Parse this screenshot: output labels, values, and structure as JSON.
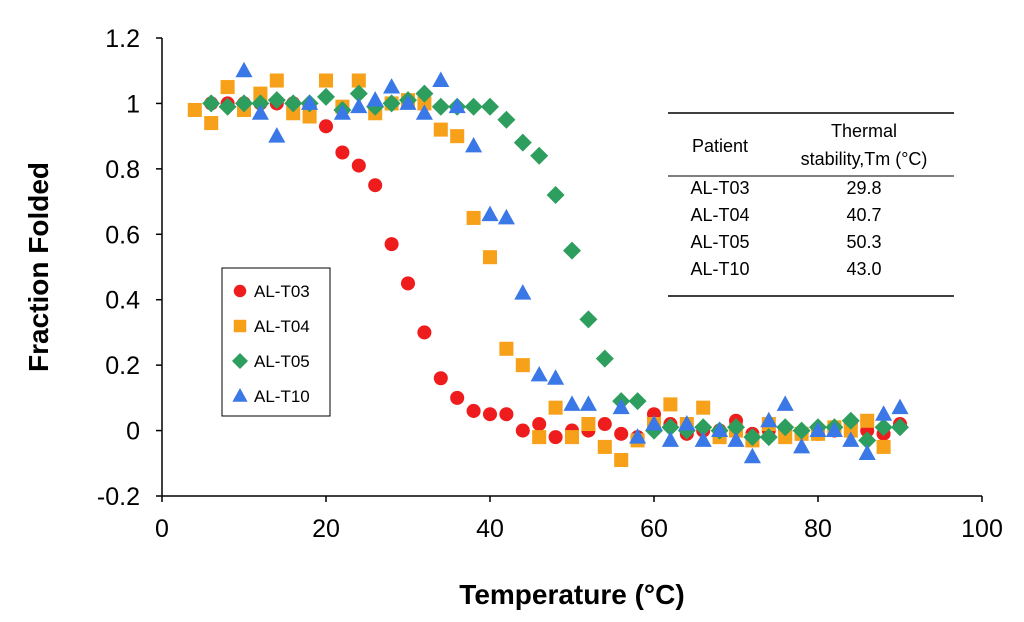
{
  "chart_data": {
    "type": "scatter",
    "title": "",
    "xlabel": "Temperature (°C)",
    "ylabel": "Fraction Folded",
    "xlim": [
      0,
      100
    ],
    "ylim": [
      -0.2,
      1.2
    ],
    "x_ticks": [
      "0",
      "20",
      "40",
      "60",
      "80",
      "100"
    ],
    "y_ticks": [
      "-0.2",
      "0",
      "0.2",
      "0.4",
      "0.6",
      "0.8",
      "1",
      "1.2"
    ],
    "grid": false,
    "legend_position": "center-left",
    "series": [
      {
        "name": "AL-T03",
        "marker": "circle",
        "color": "#ee1c1c",
        "points": [
          [
            6,
            1.0
          ],
          [
            8,
            1.0
          ],
          [
            10,
            1.0
          ],
          [
            12,
            1.0
          ],
          [
            14,
            1.0
          ],
          [
            16,
            1.0
          ],
          [
            18,
            0.99
          ],
          [
            20,
            0.93
          ],
          [
            22,
            0.85
          ],
          [
            24,
            0.81
          ],
          [
            26,
            0.75
          ],
          [
            28,
            0.57
          ],
          [
            30,
            0.45
          ],
          [
            32,
            0.3
          ],
          [
            34,
            0.16
          ],
          [
            36,
            0.1
          ],
          [
            38,
            0.06
          ],
          [
            40,
            0.05
          ],
          [
            42,
            0.05
          ],
          [
            44,
            0.0
          ],
          [
            46,
            0.02
          ],
          [
            48,
            -0.02
          ],
          [
            50,
            0.0
          ],
          [
            52,
            0.0
          ],
          [
            54,
            0.02
          ],
          [
            56,
            -0.01
          ],
          [
            58,
            -0.02
          ],
          [
            60,
            0.05
          ],
          [
            62,
            0.02
          ],
          [
            64,
            -0.01
          ],
          [
            66,
            0.0
          ],
          [
            68,
            0.0
          ],
          [
            70,
            0.03
          ],
          [
            72,
            -0.01
          ],
          [
            74,
            0.0
          ],
          [
            76,
            0.0
          ],
          [
            78,
            -0.01
          ],
          [
            80,
            -0.01
          ],
          [
            82,
            0.0
          ],
          [
            84,
            0.02
          ],
          [
            86,
            0.0
          ],
          [
            88,
            -0.01
          ],
          [
            90,
            0.02
          ]
        ]
      },
      {
        "name": "AL-T04",
        "marker": "square",
        "color": "#f7a11a",
        "points": [
          [
            4,
            0.98
          ],
          [
            6,
            0.94
          ],
          [
            8,
            1.05
          ],
          [
            10,
            0.98
          ],
          [
            12,
            1.03
          ],
          [
            14,
            1.07
          ],
          [
            16,
            0.97
          ],
          [
            18,
            0.96
          ],
          [
            20,
            1.07
          ],
          [
            22,
            0.99
          ],
          [
            24,
            1.07
          ],
          [
            26,
            0.97
          ],
          [
            28,
            1.0
          ],
          [
            30,
            1.01
          ],
          [
            32,
            1.0
          ],
          [
            34,
            0.92
          ],
          [
            36,
            0.9
          ],
          [
            38,
            0.65
          ],
          [
            40,
            0.53
          ],
          [
            42,
            0.25
          ],
          [
            44,
            0.2
          ],
          [
            46,
            -0.02
          ],
          [
            48,
            0.07
          ],
          [
            50,
            -0.02
          ],
          [
            52,
            0.02
          ],
          [
            54,
            -0.05
          ],
          [
            56,
            -0.09
          ],
          [
            58,
            -0.03
          ],
          [
            60,
            0.02
          ],
          [
            62,
            0.08
          ],
          [
            64,
            0.02
          ],
          [
            66,
            0.07
          ],
          [
            68,
            -0.02
          ],
          [
            70,
            0.0
          ],
          [
            72,
            -0.03
          ],
          [
            74,
            0.02
          ],
          [
            76,
            -0.02
          ],
          [
            78,
            -0.01
          ],
          [
            80,
            -0.01
          ],
          [
            82,
            0.01
          ],
          [
            84,
            0.0
          ],
          [
            86,
            0.03
          ],
          [
            88,
            -0.05
          ]
        ]
      },
      {
        "name": "AL-T05",
        "marker": "diamond",
        "color": "#2e9e5e",
        "points": [
          [
            6,
            1.0
          ],
          [
            8,
            0.99
          ],
          [
            10,
            1.0
          ],
          [
            12,
            1.0
          ],
          [
            14,
            1.01
          ],
          [
            16,
            1.0
          ],
          [
            18,
            1.0
          ],
          [
            20,
            1.02
          ],
          [
            22,
            0.98
          ],
          [
            24,
            1.03
          ],
          [
            26,
            0.99
          ],
          [
            28,
            1.0
          ],
          [
            30,
            1.01
          ],
          [
            32,
            1.03
          ],
          [
            34,
            0.99
          ],
          [
            36,
            0.99
          ],
          [
            38,
            0.99
          ],
          [
            40,
            0.99
          ],
          [
            42,
            0.95
          ],
          [
            44,
            0.88
          ],
          [
            46,
            0.84
          ],
          [
            48,
            0.72
          ],
          [
            50,
            0.55
          ],
          [
            52,
            0.34
          ],
          [
            54,
            0.22
          ],
          [
            56,
            0.09
          ],
          [
            58,
            0.09
          ],
          [
            60,
            0.0
          ],
          [
            62,
            0.01
          ],
          [
            64,
            0.0
          ],
          [
            66,
            0.01
          ],
          [
            68,
            0.0
          ],
          [
            70,
            0.01
          ],
          [
            72,
            -0.02
          ],
          [
            74,
            -0.02
          ],
          [
            76,
            0.01
          ],
          [
            78,
            0.0
          ],
          [
            80,
            0.01
          ],
          [
            82,
            0.01
          ],
          [
            84,
            0.03
          ],
          [
            86,
            -0.03
          ],
          [
            88,
            0.01
          ],
          [
            90,
            0.01
          ]
        ]
      },
      {
        "name": "AL-T10",
        "marker": "triangle",
        "color": "#3b78e7",
        "points": [
          [
            10,
            1.1
          ],
          [
            12,
            0.97
          ],
          [
            14,
            0.9
          ],
          [
            18,
            1.0
          ],
          [
            22,
            0.97
          ],
          [
            24,
            0.99
          ],
          [
            26,
            1.01
          ],
          [
            28,
            1.05
          ],
          [
            30,
            1.0
          ],
          [
            32,
            0.97
          ],
          [
            34,
            1.07
          ],
          [
            36,
            0.99
          ],
          [
            38,
            0.87
          ],
          [
            40,
            0.66
          ],
          [
            42,
            0.65
          ],
          [
            44,
            0.42
          ],
          [
            46,
            0.17
          ],
          [
            48,
            0.16
          ],
          [
            50,
            0.08
          ],
          [
            52,
            0.08
          ],
          [
            56,
            0.07
          ],
          [
            58,
            -0.02
          ],
          [
            60,
            0.02
          ],
          [
            62,
            -0.03
          ],
          [
            64,
            0.02
          ],
          [
            66,
            -0.03
          ],
          [
            68,
            0.0
          ],
          [
            70,
            -0.03
          ],
          [
            72,
            -0.08
          ],
          [
            74,
            0.03
          ],
          [
            76,
            0.08
          ],
          [
            78,
            -0.05
          ],
          [
            80,
            0.0
          ],
          [
            82,
            0.0
          ],
          [
            84,
            -0.03
          ],
          [
            86,
            -0.07
          ],
          [
            88,
            0.05
          ],
          [
            90,
            0.07
          ]
        ]
      }
    ],
    "table": {
      "headers": [
        "Patient",
        "Thermal",
        "stability,Tm (°C)"
      ],
      "rows": [
        {
          "patient": "AL-T03",
          "tm": "29.8"
        },
        {
          "patient": "AL-T04",
          "tm": "40.7"
        },
        {
          "patient": "AL-T05",
          "tm": "50.3"
        },
        {
          "patient": "AL-T10",
          "tm": "43.0"
        }
      ]
    }
  }
}
